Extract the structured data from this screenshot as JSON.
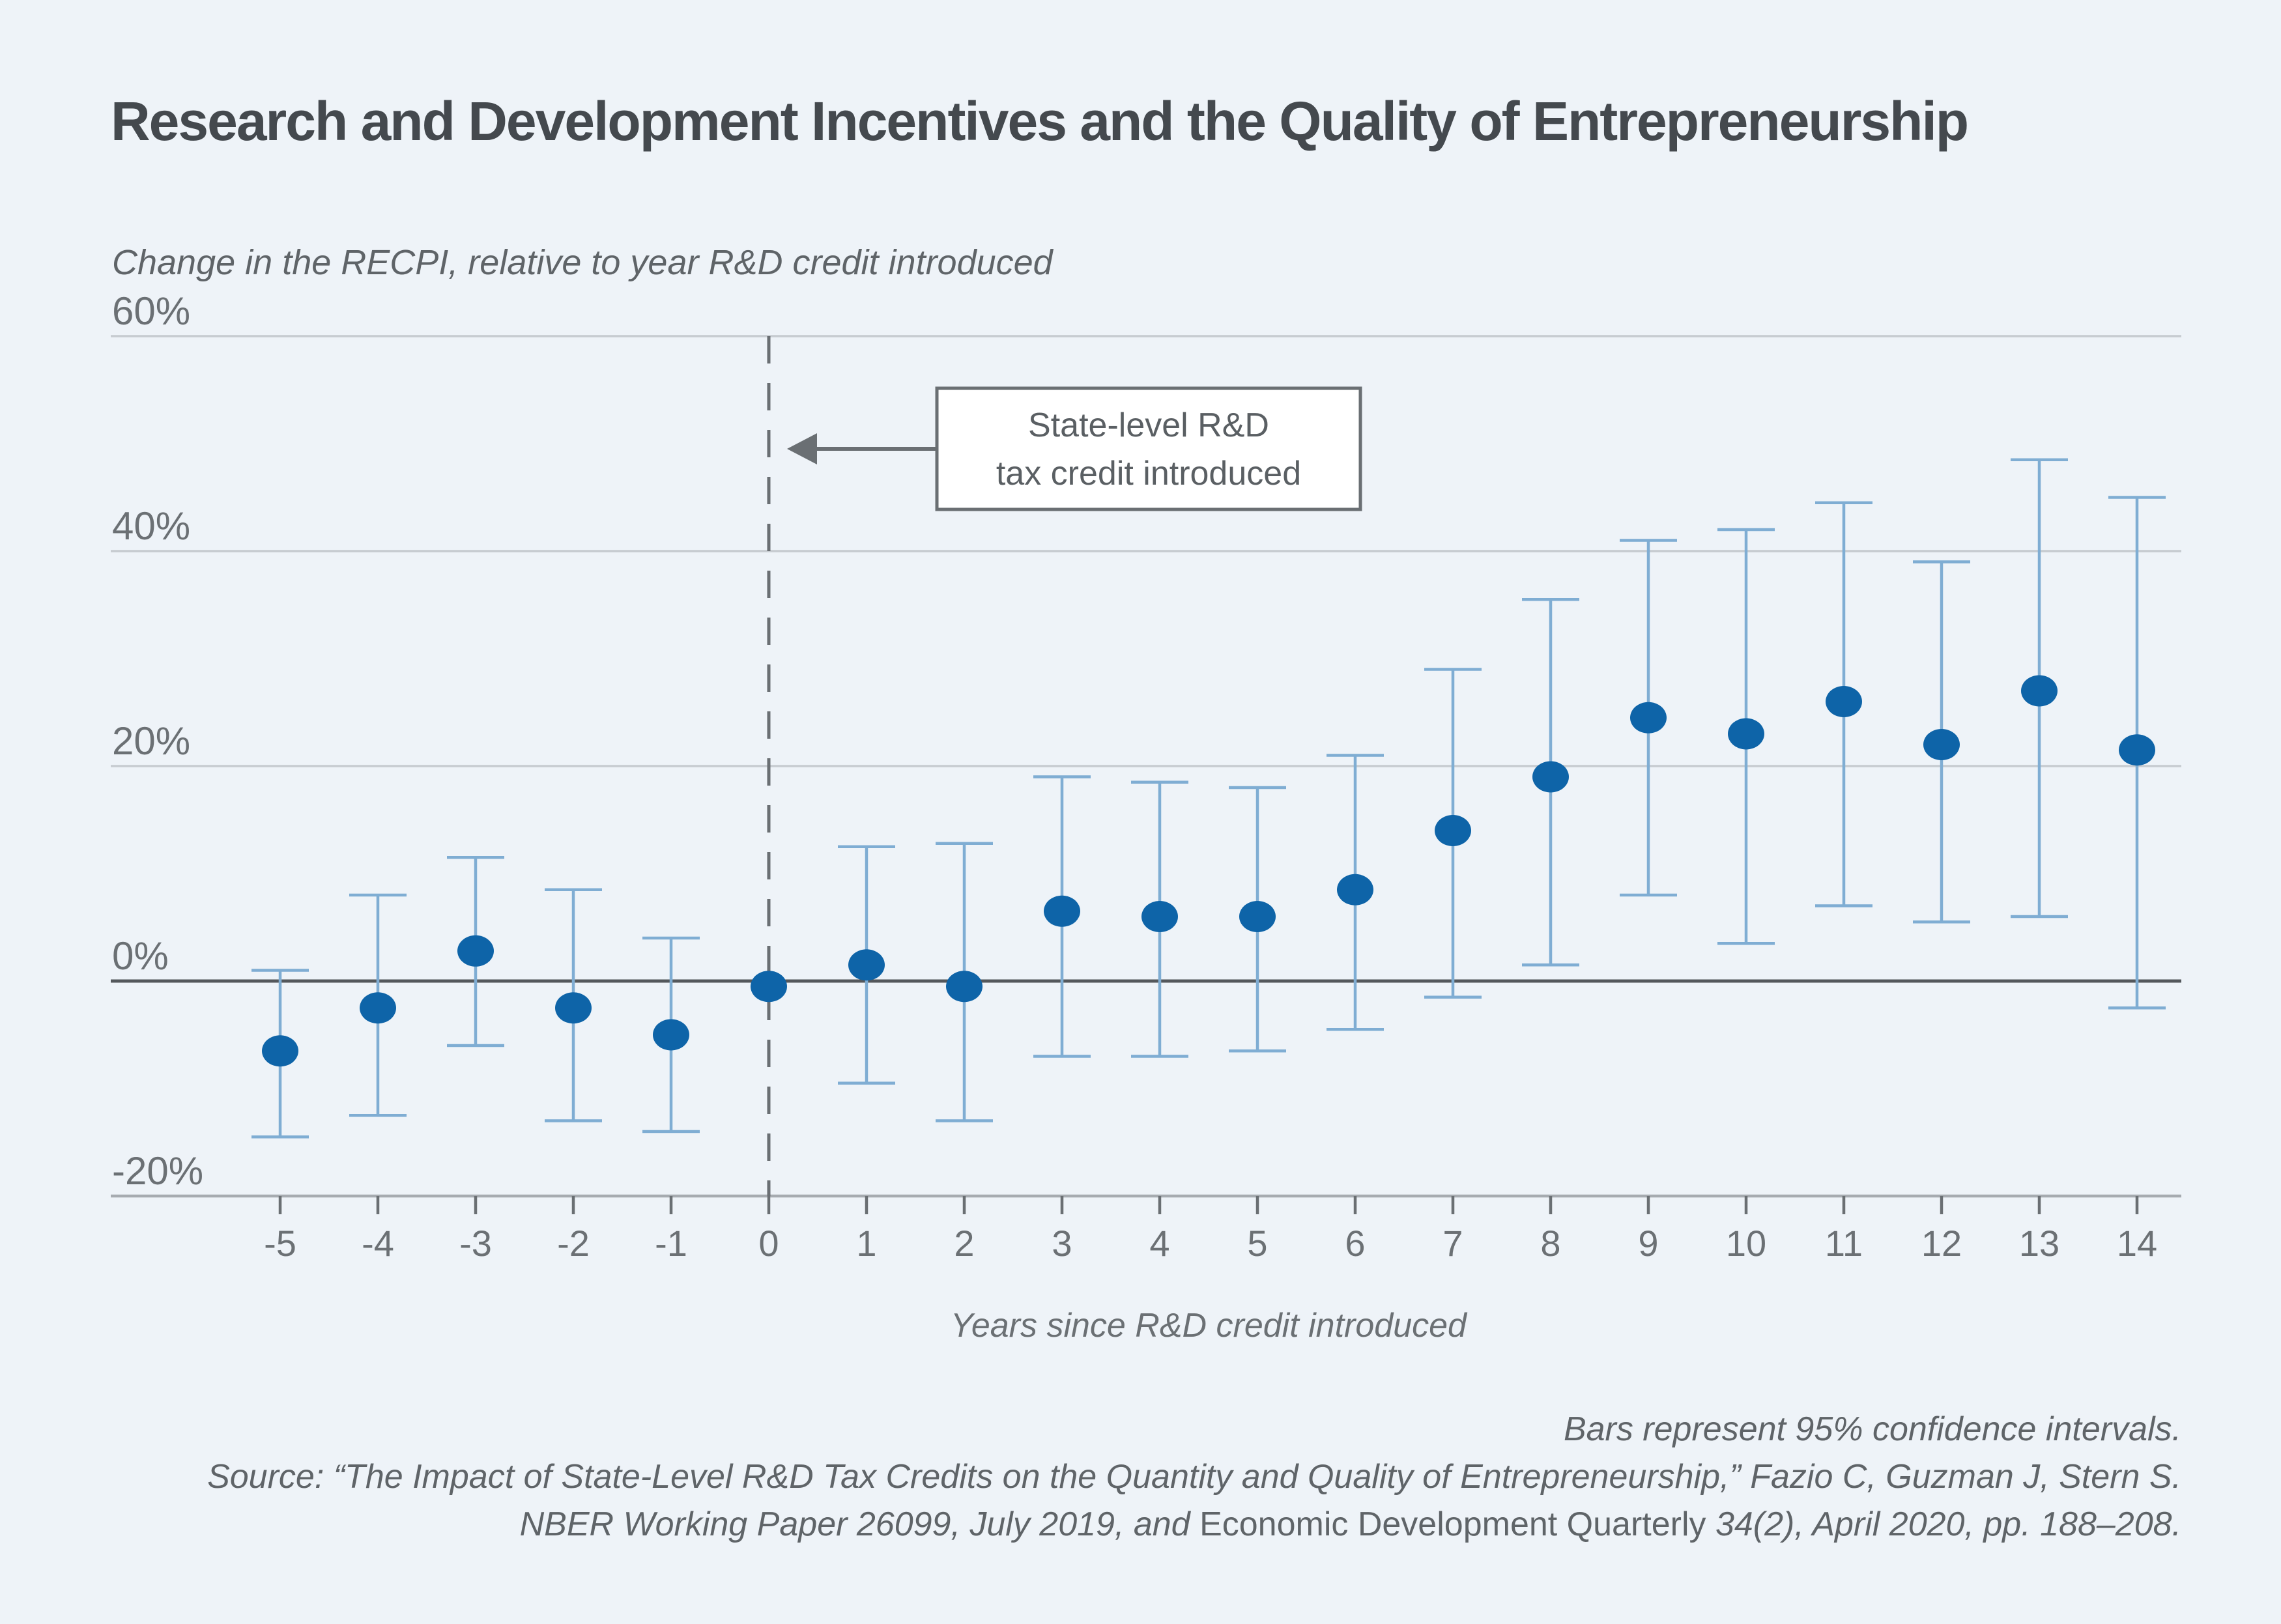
{
  "figure": {
    "title": "Research and Development Incentives and the Quality of Entrepreneurship"
  },
  "chart_data": {
    "type": "scatter",
    "subtype": "point-estimates-with-95-percent-confidence-intervals",
    "title": "Research and Development Incentives and the Quality of Entrepreneurship",
    "y_axis_title": "Change in the RECPI, relative to year R&D credit introduced",
    "x_axis_title": "Years since R&D credit introduced",
    "grid": "horizontal",
    "legend_position": "none",
    "ylim": [
      -20,
      60
    ],
    "y_ticks": [
      {
        "value": 60,
        "label": "60%"
      },
      {
        "value": 40,
        "label": "40%"
      },
      {
        "value": 20,
        "label": "20%"
      },
      {
        "value": 0,
        "label": "0%"
      },
      {
        "value": -20,
        "label": "-20%"
      }
    ],
    "annotation": {
      "line1": "State-level R&D",
      "line2": "tax credit introduced",
      "arrow_points_to_x": 0
    },
    "points": [
      {
        "x": -5,
        "est": -6.5,
        "lo": -14.5,
        "hi": 1
      },
      {
        "x": -4,
        "est": -2.5,
        "lo": -12.5,
        "hi": 8
      },
      {
        "x": -3,
        "est": 2.8,
        "lo": -6,
        "hi": 11.5
      },
      {
        "x": -2,
        "est": -2.5,
        "lo": -13,
        "hi": 8.5
      },
      {
        "x": -1,
        "est": -5,
        "lo": -14,
        "hi": 4
      },
      {
        "x": 0,
        "est": -0.5,
        "lo": null,
        "hi": null
      },
      {
        "x": 1,
        "est": 1.5,
        "lo": -9.5,
        "hi": 12.5
      },
      {
        "x": 2,
        "est": -0.5,
        "lo": -13,
        "hi": 12.8
      },
      {
        "x": 3,
        "est": 6.5,
        "lo": -7,
        "hi": 19
      },
      {
        "x": 4,
        "est": 6,
        "lo": -7,
        "hi": 18.5
      },
      {
        "x": 5,
        "est": 6,
        "lo": -6.5,
        "hi": 18
      },
      {
        "x": 6,
        "est": 8.5,
        "lo": -4.5,
        "hi": 21
      },
      {
        "x": 7,
        "est": 14,
        "lo": -1.5,
        "hi": 29
      },
      {
        "x": 8,
        "est": 19,
        "lo": 1.5,
        "hi": 35.5
      },
      {
        "x": 9,
        "est": 24.5,
        "lo": 8,
        "hi": 41
      },
      {
        "x": 10,
        "est": 23,
        "lo": 3.5,
        "hi": 42
      },
      {
        "x": 11,
        "est": 26,
        "lo": 7,
        "hi": 44.5
      },
      {
        "x": 12,
        "est": 22,
        "lo": 5.5,
        "hi": 39
      },
      {
        "x": 13,
        "est": 27,
        "lo": 6,
        "hi": 48.5
      },
      {
        "x": 14,
        "est": 21.5,
        "lo": -2.5,
        "hi": 45
      }
    ],
    "colors": {
      "background": "#eef3f8",
      "point": "#0e64a8",
      "whisker": "#7fadd3",
      "gridline": "#c6cbd0",
      "zero_line": "#54585c",
      "axis_line": "#a6abb0",
      "tick": "#6a6f73",
      "dashed_line": "#6a6f73",
      "label_text": "#6b7074",
      "title_text": "#44494e",
      "annotation_bg": "#ffffff",
      "annotation_border": "#6a6f73",
      "annotation_text": "#5a5f63"
    }
  },
  "footer": {
    "note": "Bars represent 95% confidence intervals.",
    "source_line_1": "Source: “The Impact of State-Level R&D Tax Credits on the Quantity and Quality of Entrepreneurship,” Fazio C, Guzman J, Stern S.",
    "source_line_2_italic_a": "NBER Working Paper 26099, July 2019, and ",
    "source_line_2_roman": "Economic Development Quarterly",
    "source_line_2_italic_b": " 34(2), April 2020, pp. 188–208."
  }
}
